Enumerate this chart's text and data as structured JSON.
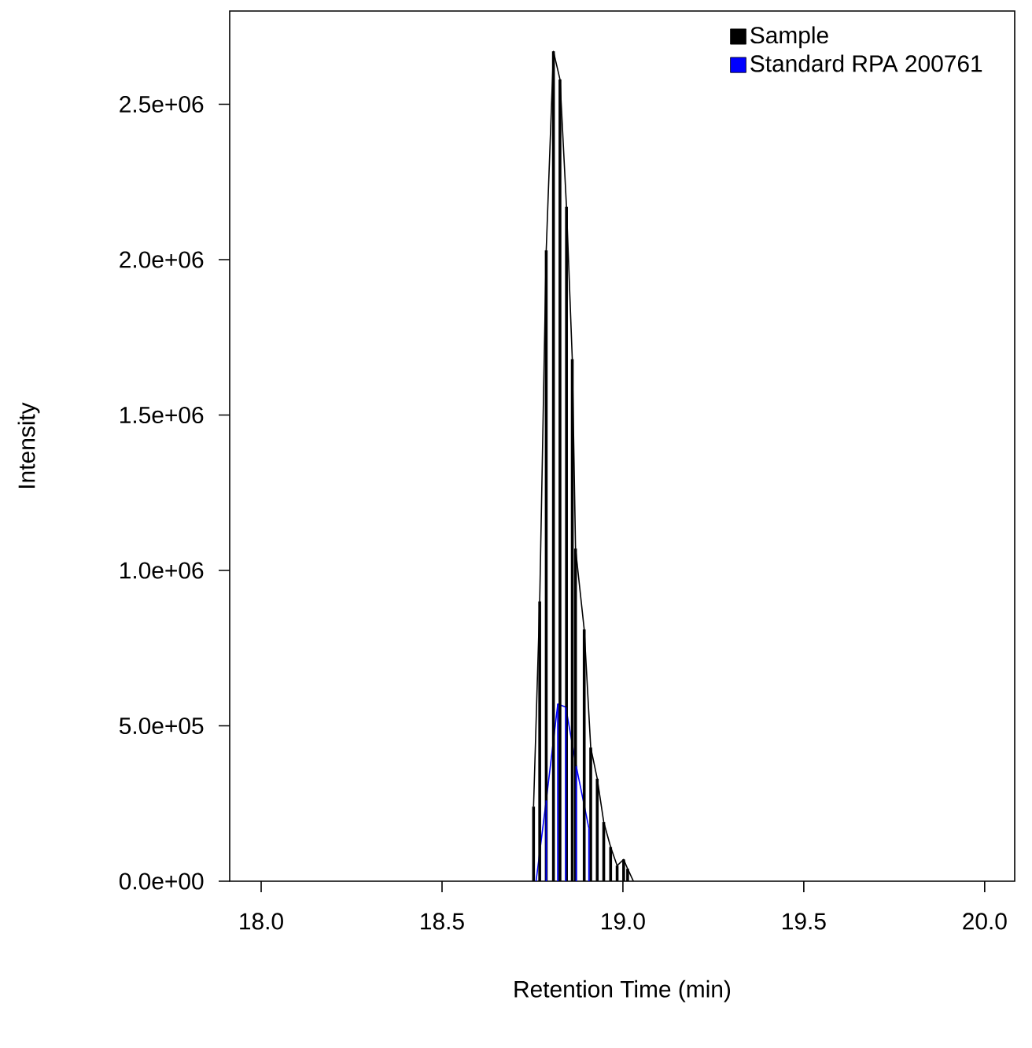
{
  "chart_data": {
    "type": "line",
    "xlabel": "Retention Time (min)",
    "ylabel": "Intensity",
    "xlim": [
      17.913,
      20.083
    ],
    "ylim": [
      0,
      2800000
    ],
    "xticks": [
      {
        "value": 18,
        "label": "18.0"
      },
      {
        "value": 18.5,
        "label": "18.5"
      },
      {
        "value": 19,
        "label": "19.0"
      },
      {
        "value": 19.5,
        "label": "19.5"
      },
      {
        "value": 20,
        "label": "20.0"
      }
    ],
    "yticks": [
      {
        "value": 0,
        "label": "0.0e+00"
      },
      {
        "value": 500000,
        "label": "5.0e+05"
      },
      {
        "value": 1000000,
        "label": "1.0e+06"
      },
      {
        "value": 1500000,
        "label": "1.5e+06"
      },
      {
        "value": 2000000,
        "label": "2.0e+06"
      },
      {
        "value": 2500000,
        "label": "2.5e+06"
      }
    ],
    "grid": false,
    "legend": "top right",
    "marker": "none",
    "line_style": "solid",
    "series": [
      {
        "name": "Sample",
        "color": "#000000",
        "x": [
          18.753,
          18.77,
          18.788,
          18.808,
          18.826,
          18.844,
          18.86,
          18.869,
          18.893,
          18.911,
          18.929,
          18.947,
          18.966,
          18.984,
          19.002,
          19.013,
          19.029
        ],
        "values": [
          240000,
          900000,
          2030000,
          2670000,
          2580000,
          2170000,
          1680000,
          1070000,
          810000,
          430000,
          330000,
          190000,
          110000,
          50000,
          70000,
          40000,
          0
        ]
      },
      {
        "name": "Standard RPA 200761",
        "color": "#0000ff",
        "x": [
          18.76,
          18.788,
          18.82,
          18.842,
          18.871,
          18.906
        ],
        "values": [
          0,
          260000,
          570000,
          560000,
          370000,
          170000
        ]
      },
      {
        "type": "bar",
        "color": "#000000",
        "x": [
          18.753,
          18.77,
          18.788,
          18.808,
          18.826,
          18.844,
          18.86,
          18.869,
          18.893,
          18.911,
          18.929,
          18.947,
          18.966,
          18.984,
          19.002,
          19.013,
          19.029
        ],
        "values": [
          240000,
          900000,
          2030000,
          2670000,
          2580000,
          2170000,
          1680000,
          1070000,
          810000,
          430000,
          330000,
          190000,
          110000,
          50000,
          70000,
          40000,
          0
        ]
      },
      {
        "type": "bar",
        "color": "#0000ff",
        "x": [
          18.76,
          18.788,
          18.82,
          18.842,
          18.871,
          18.906
        ],
        "values": [
          0,
          260000,
          570000,
          560000,
          370000,
          170000
        ]
      }
    ]
  }
}
